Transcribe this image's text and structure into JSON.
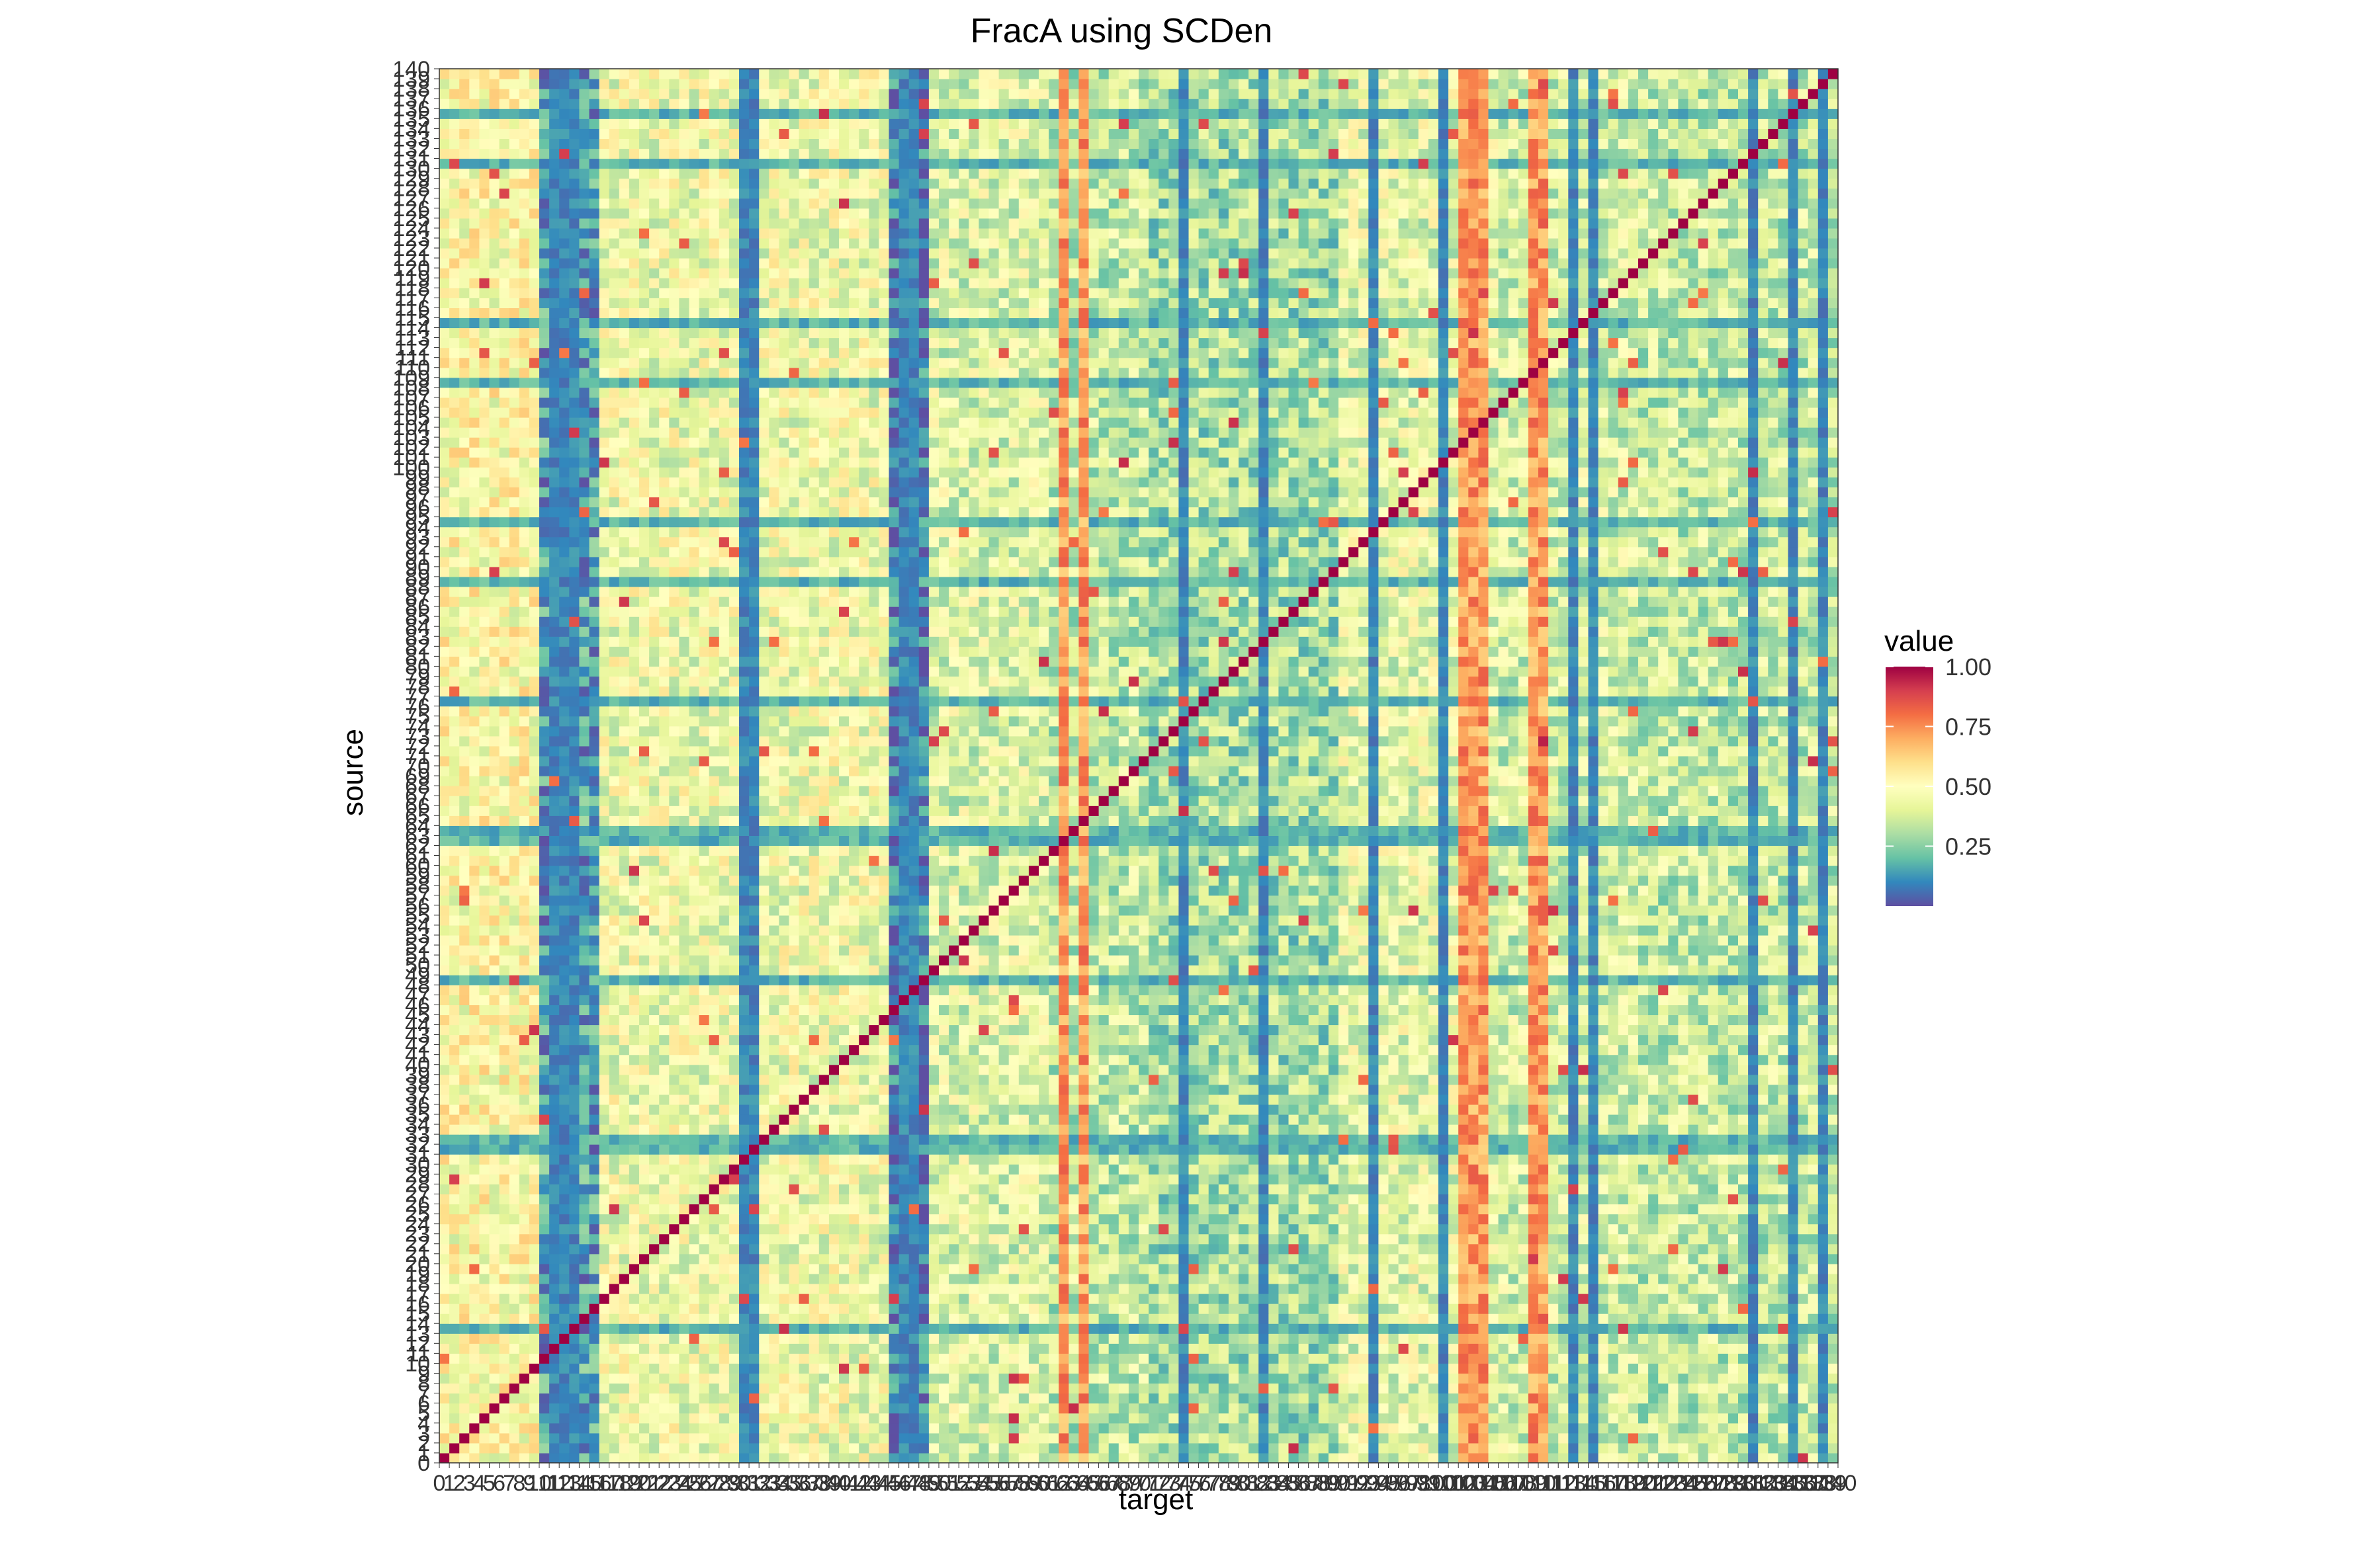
{
  "chart_data": {
    "type": "heatmap",
    "title": "FracA using SCDen",
    "xlabel": "target",
    "ylabel": "source",
    "x_range": [
      0,
      140
    ],
    "y_range": [
      0,
      140
    ],
    "grid": false,
    "legend": {
      "title": "value",
      "placement": "right",
      "ticks": [
        "1.00",
        "0.75",
        "0.50",
        "0.25"
      ],
      "tick_values": [
        1.0,
        0.75,
        0.5,
        0.25
      ],
      "range": [
        0.0,
        1.0
      ]
    },
    "colorscale": [
      "#5E4FA2",
      "#3288BD",
      "#66C2A5",
      "#ABDDA4",
      "#E6F598",
      "#FFFFBF",
      "#FEE08B",
      "#FDAE61",
      "#F46D43",
      "#D53E4F",
      "#9E0142"
    ],
    "diagonal_value": 1.0,
    "cell_counts": {
      "x": 140,
      "y": 140
    },
    "default_value": 0.45,
    "column_profile": [
      {
        "range": [
          0,
          9
        ],
        "value": 0.5
      },
      {
        "range": [
          10,
          15
        ],
        "value": 0.15
      },
      {
        "range": [
          16,
          44
        ],
        "value": 0.45
      },
      {
        "range": [
          45,
          48
        ],
        "value": 0.08
      },
      {
        "range": [
          49,
          60
        ],
        "value": 0.4
      },
      {
        "range": [
          61,
          70
        ],
        "value": 0.35
      },
      {
        "range": [
          71,
          89
        ],
        "value": 0.3
      },
      {
        "range": [
          90,
          105
        ],
        "value": 0.42
      },
      {
        "range": [
          106,
          119
        ],
        "value": 0.38
      },
      {
        "range": [
          120,
          139
        ],
        "value": 0.35
      }
    ],
    "low_columns": [
      11,
      12,
      13,
      30,
      31,
      46,
      47,
      74,
      82,
      93,
      100,
      113,
      115,
      131,
      135,
      138
    ],
    "high_columns": [
      62,
      64,
      102,
      103,
      104,
      109,
      110
    ],
    "low_rows": [
      13,
      31,
      32,
      48,
      62,
      63,
      76,
      88,
      94,
      108,
      114,
      130,
      135
    ],
    "notable_cells": [
      {
        "x": 96,
        "y": 99,
        "value": 0.9
      },
      {
        "x": 110,
        "y": 72,
        "value": 0.95
      },
      {
        "x": 32,
        "y": 71,
        "value": 0.85
      },
      {
        "x": 12,
        "y": 131,
        "value": 0.9
      }
    ]
  }
}
